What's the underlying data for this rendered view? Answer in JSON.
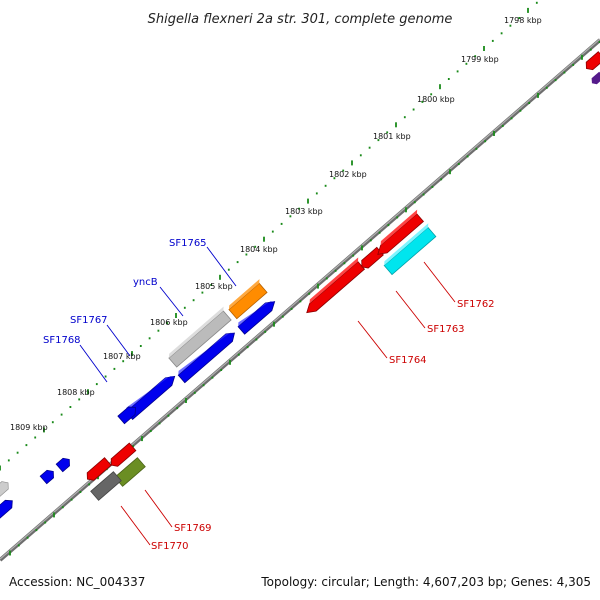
{
  "title": "Shigella flexneri 2a str. 301, complete genome",
  "scale_labels": [
    "1798 kbp",
    "1799 kbp",
    "1800 kbp",
    "1801 kbp",
    "1802 kbp",
    "1803 kbp",
    "1804 kbp",
    "1805 kbp",
    "1806 kbp",
    "1807 kbp",
    "1808 kbp",
    "1809 kbp"
  ],
  "genes": [
    {
      "name": "SF1765",
      "color": "#0000cc",
      "strand": "forward"
    },
    {
      "name": "yncB",
      "color": "#0000cc",
      "strand": "forward"
    },
    {
      "name": "SF1767",
      "color": "#0000cc",
      "strand": "forward"
    },
    {
      "name": "SF1768",
      "color": "#0000cc",
      "strand": "forward"
    },
    {
      "name": "SF1762",
      "color": "#cc0000",
      "strand": "reverse"
    },
    {
      "name": "SF1763",
      "color": "#cc0000",
      "strand": "reverse"
    },
    {
      "name": "SF1764",
      "color": "#cc0000",
      "strand": "reverse"
    },
    {
      "name": "SF1769",
      "color": "#cc0000",
      "strand": "reverse"
    },
    {
      "name": "SF1770",
      "color": "#cc0000",
      "strand": "reverse"
    }
  ],
  "colors": {
    "forward_cds": "#0000ee",
    "reverse_cds": "#ee0000",
    "backbone": "#808080",
    "tick_green": "#1a8a1a",
    "orange": "#ff8c00",
    "cyan": "#00e5ee",
    "gray": "#bbbbbb",
    "olive": "#6b8e23"
  },
  "footer": {
    "accession": "Accession: NC_004337",
    "summary": "Topology: circular; Length: 4,607,203 bp; Genes: 4,305"
  }
}
